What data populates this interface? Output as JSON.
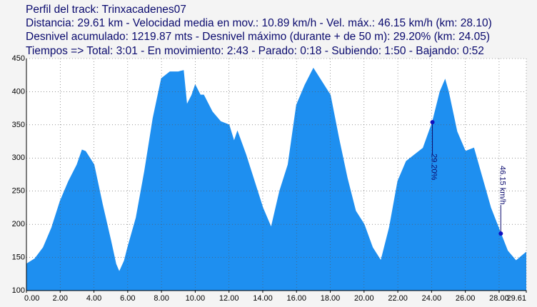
{
  "chart_data": {
    "type": "area",
    "title": "Perfil del track: Trinxacadenes07",
    "subtitle": [
      "Distancia: 29.61 km - Velocidad media en mov.: 10.89 km/h - Vel. máx.: 46.15 km/h (km: 28.10)",
      "Desnivel acumulado: 1219.87 mts - Desnivel máximo (durante + de 50 m): 29.20% (km: 24.05)",
      "Tiempos => Total: 3:01 - En movimiento: 2:43 - Parado: 0:18 - Subiendo: 1:50 - Bajando: 0:52"
    ],
    "x": [
      0,
      0.5,
      1.0,
      1.5,
      2.0,
      2.5,
      3.0,
      3.3,
      3.5,
      4.0,
      4.5,
      5.0,
      5.3,
      5.5,
      5.8,
      6.0,
      6.5,
      7.0,
      7.5,
      8.0,
      8.5,
      9.0,
      9.3,
      9.5,
      9.8,
      10.0,
      10.3,
      10.5,
      11.0,
      11.5,
      12.0,
      12.3,
      12.5,
      13.0,
      13.5,
      14.0,
      14.5,
      15.0,
      15.5,
      16.0,
      16.5,
      17.0,
      17.5,
      18.0,
      18.5,
      19.0,
      19.5,
      20.0,
      20.5,
      21.0,
      21.5,
      22.0,
      22.5,
      23.0,
      23.5,
      24.05,
      24.5,
      24.8,
      25.0,
      25.5,
      26.0,
      26.5,
      27.0,
      27.5,
      28.1,
      28.5,
      29.0,
      29.61
    ],
    "values": [
      140,
      148,
      165,
      195,
      235,
      265,
      290,
      312,
      310,
      290,
      230,
      175,
      140,
      128,
      145,
      165,
      210,
      280,
      360,
      420,
      430,
      430,
      432,
      380,
      395,
      410,
      395,
      395,
      370,
      355,
      350,
      325,
      340,
      305,
      265,
      225,
      195,
      250,
      290,
      380,
      410,
      435,
      415,
      395,
      330,
      270,
      220,
      200,
      165,
      145,
      195,
      265,
      295,
      305,
      315,
      354,
      400,
      418,
      400,
      340,
      310,
      315,
      270,
      225,
      186,
      160,
      145,
      158
    ],
    "color": "#1e8ff0",
    "xlim": [
      0,
      29.61
    ],
    "ylim": [
      100,
      450
    ],
    "xticks": [
      {
        "value": 0,
        "label": "0.00"
      },
      {
        "value": 2,
        "label": "2.00"
      },
      {
        "value": 4,
        "label": "4.00"
      },
      {
        "value": 6,
        "label": "6.00"
      },
      {
        "value": 8,
        "label": "8.00"
      },
      {
        "value": 10,
        "label": "10.00"
      },
      {
        "value": 12,
        "label": "12.00"
      },
      {
        "value": 14,
        "label": "14.00"
      },
      {
        "value": 16,
        "label": "16.00"
      },
      {
        "value": 18,
        "label": "18.00"
      },
      {
        "value": 20,
        "label": "20.00"
      },
      {
        "value": 22,
        "label": "22.00"
      },
      {
        "value": 24,
        "label": "24.00"
      },
      {
        "value": 26,
        "label": "26.00"
      },
      {
        "value": 28,
        "label": "28.00"
      },
      {
        "value": 29.61,
        "label": "29.61"
      }
    ],
    "yticks": [
      100,
      150,
      200,
      250,
      300,
      350,
      400,
      450
    ],
    "grid": true,
    "annotations": [
      {
        "text": "29.20%",
        "x": 24.05,
        "y": 354
      },
      {
        "text": "46.15 km/h",
        "x": 28.1,
        "y": 186
      }
    ]
  }
}
